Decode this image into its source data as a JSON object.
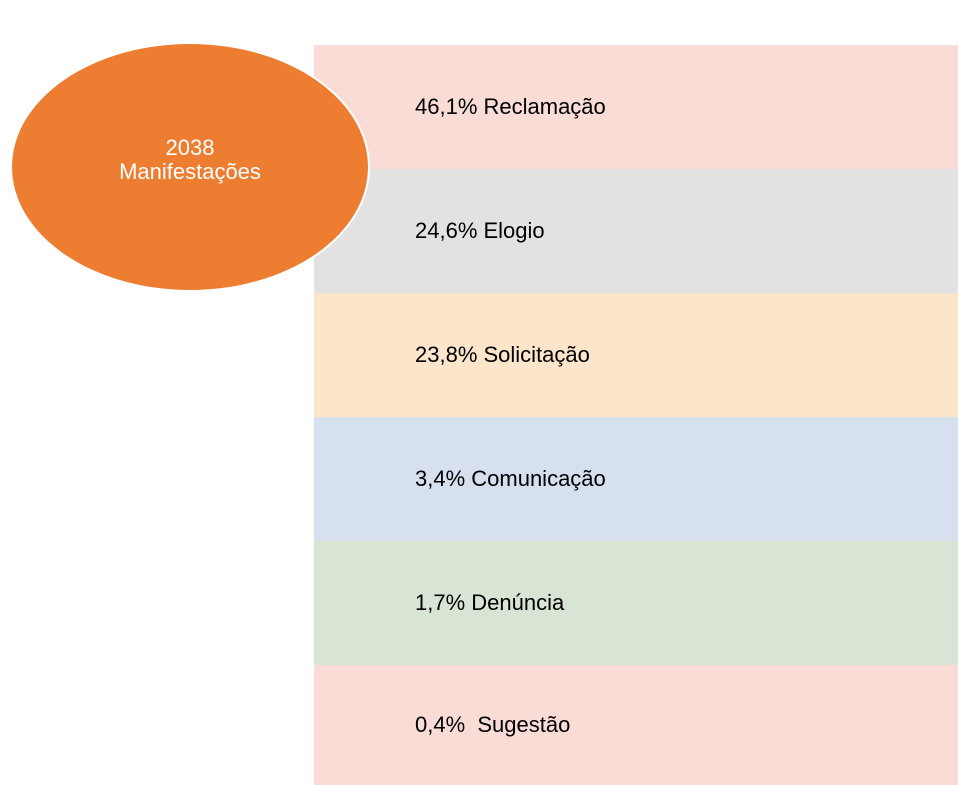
{
  "circle": {
    "total": "2038",
    "label": "Manifestações"
  },
  "rows": [
    "46,1% Reclamação",
    "24,6% Elogio",
    "23,8% Solicitação",
    "3,4% Comunicação",
    "1,7% Denúncia",
    "0,4%  Sugestão"
  ]
}
